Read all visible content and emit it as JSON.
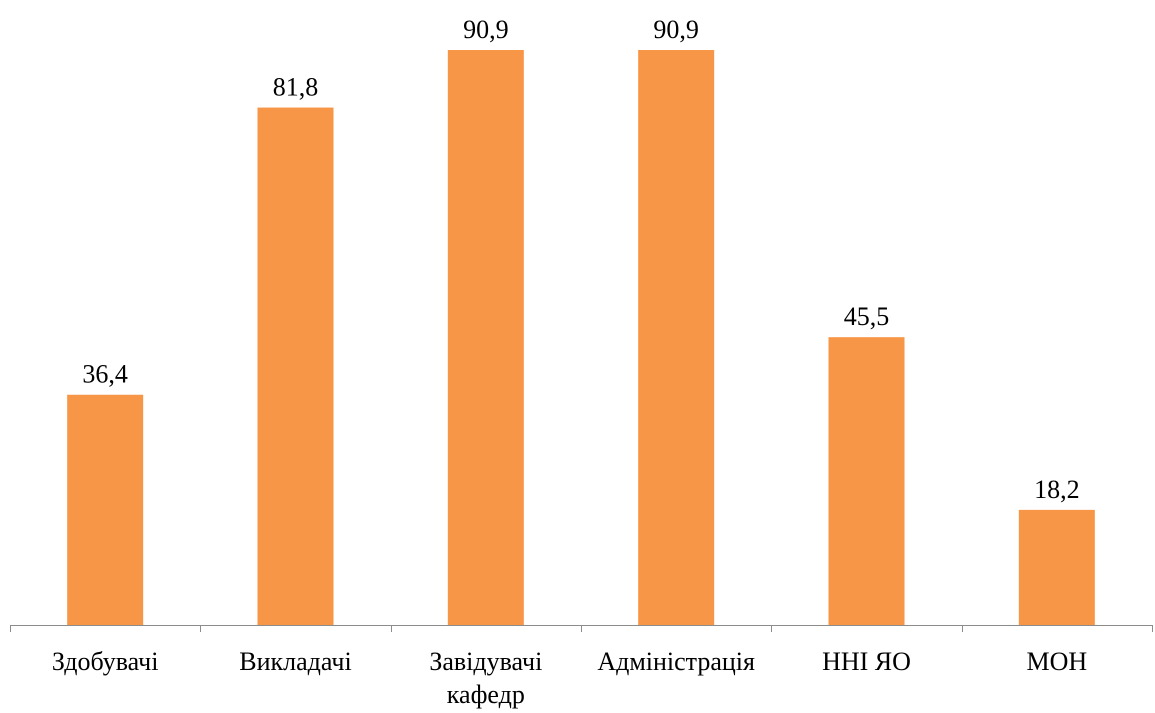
{
  "chart_data": {
    "type": "bar",
    "categories": [
      [
        "Здобувачі"
      ],
      [
        "Викладачі"
      ],
      [
        "Завідувачі",
        "кафедр"
      ],
      [
        "Адміністрація"
      ],
      [
        "ННІ ЯО"
      ],
      [
        "МОН"
      ]
    ],
    "values": [
      36.4,
      81.8,
      90.9,
      90.9,
      45.5,
      18.2
    ],
    "value_labels": [
      "36,4",
      "81,8",
      "90,9",
      "90,9",
      "45,5",
      "18,2"
    ],
    "title": "",
    "xlabel": "",
    "ylabel": "",
    "ylim": [
      0,
      90.9
    ],
    "grid": false,
    "legend": "none",
    "bar_color": "#F79646"
  }
}
